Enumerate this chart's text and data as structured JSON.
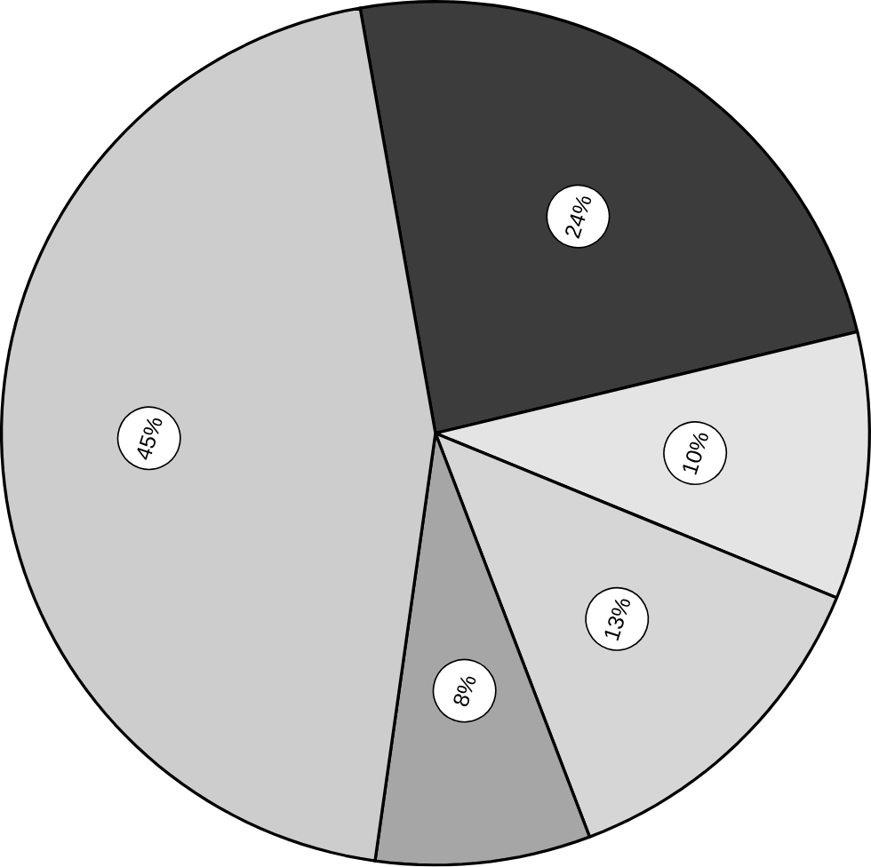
{
  "chart_data": {
    "type": "pie",
    "categories": [
      null,
      null,
      null,
      null,
      null
    ],
    "values": [
      24,
      10,
      13,
      8,
      45
    ],
    "colors": [
      "#3c3c3c",
      "#e4e4e4",
      "#d6d6d6",
      "#a6a6a6",
      "#cdcdcd"
    ],
    "value_labels": [
      "24%",
      "10%",
      "13%",
      "8%",
      "45%"
    ]
  }
}
